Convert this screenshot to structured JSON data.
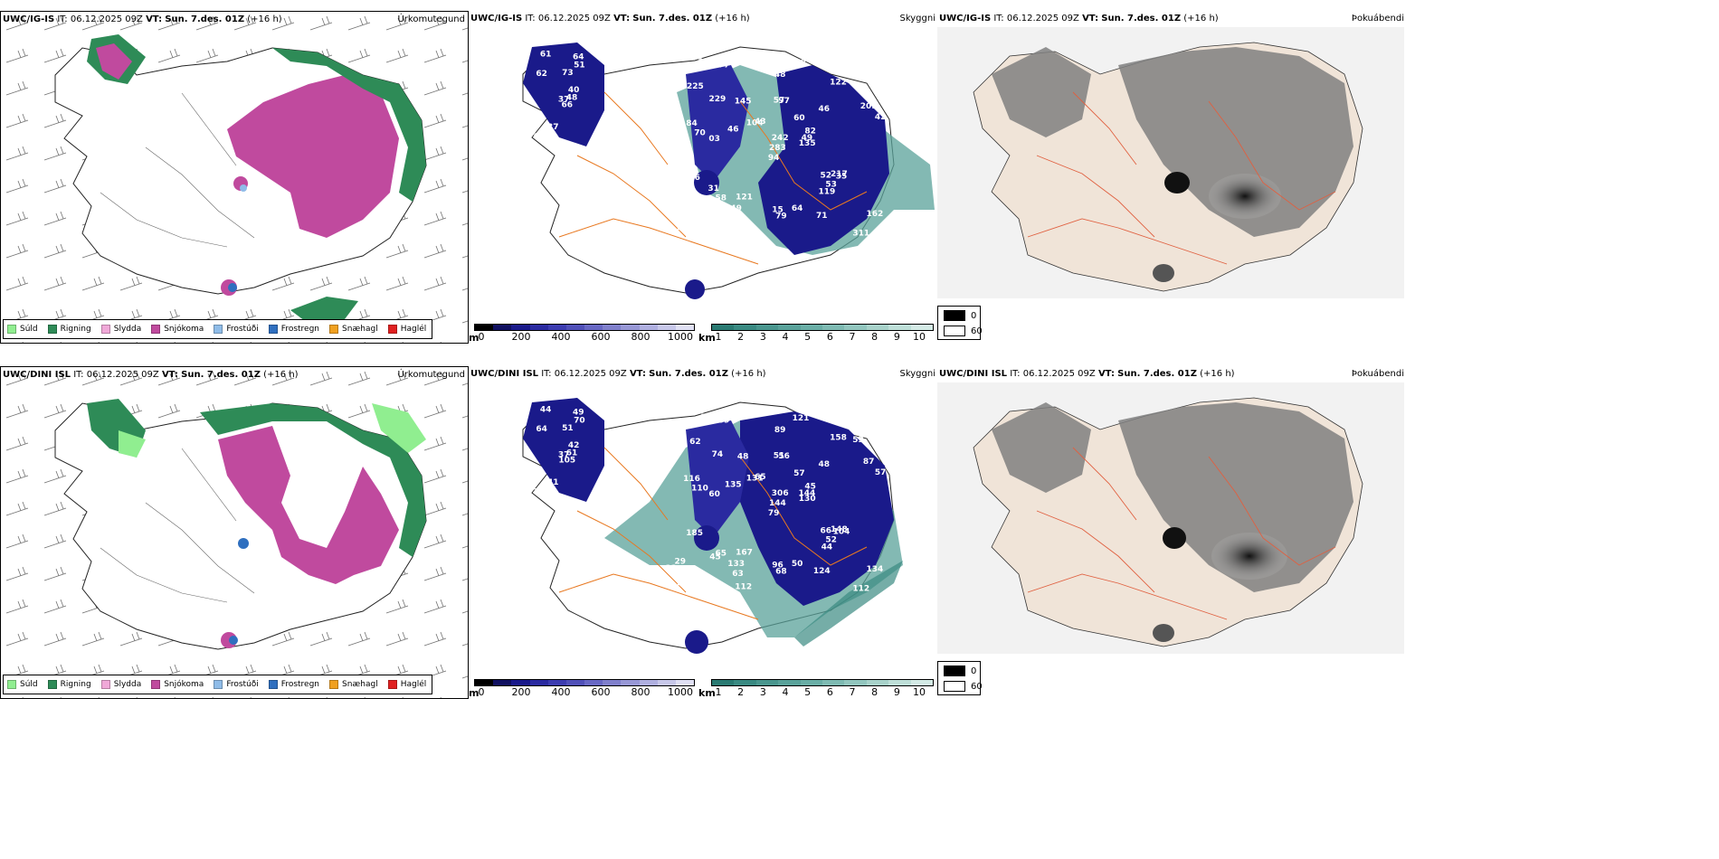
{
  "rows": [
    {
      "model": "UWC/IG-IS",
      "it_label": "IT:",
      "it_value": "06.12.2025 09Z",
      "vt_label": "VT:",
      "vt_value": "Sun. 7.des. 01Z",
      "lead": "(+16 h)",
      "cloud_numbers": [
        "66",
        "62",
        "37",
        "65",
        "40",
        "37",
        "64",
        "73",
        "51",
        "48",
        "61",
        "81",
        "03",
        "51",
        "94",
        "46",
        "61",
        "57",
        "60",
        "58",
        "43",
        "98",
        "108",
        "97",
        "82",
        "35",
        "229",
        "48",
        "70",
        "52",
        "42",
        "283",
        "15",
        "242",
        "145",
        "122",
        "121",
        "311",
        "162",
        "217",
        "83",
        "104",
        "46",
        "119",
        "112",
        "84",
        "49",
        "51",
        "79",
        "135",
        "95",
        "205",
        "225",
        "53",
        "71",
        "49",
        "77",
        "203",
        "64",
        "31",
        "56",
        "46",
        "28"
      ]
    },
    {
      "model": "UWC/DINI ISL",
      "it_label": "IT:",
      "it_value": "06.12.2025 09Z",
      "vt_label": "VT:",
      "vt_value": "Sun. 7.des. 01Z",
      "lead": "(+16 h)",
      "cloud_numbers": [
        "105",
        "64",
        "37",
        "37",
        "42",
        "41",
        "49",
        "51",
        "70",
        "61",
        "44",
        "62",
        "60",
        "57",
        "79",
        "48",
        "55",
        "51",
        "57",
        "65",
        "65",
        "10",
        "63",
        "56",
        "45",
        "104",
        "74",
        "89",
        "110",
        "66",
        "57",
        "144",
        "96",
        "306",
        "48",
        "158",
        "167",
        "112",
        "134",
        "148",
        "121",
        "131",
        "135",
        "44",
        "112",
        "116",
        "144",
        "176",
        "68",
        "130",
        "45",
        "87",
        "62",
        "52",
        "124",
        "133",
        "39",
        "70",
        "50",
        "53",
        "185",
        "48",
        "22",
        "29"
      ]
    }
  ],
  "panels": {
    "precip_type": {
      "name": "Úrkomutegund"
    },
    "cloud": {
      "name": "Skyggni"
    },
    "fog": {
      "name": "Þokuábendi"
    }
  },
  "precip_legend": [
    {
      "label": "Súld",
      "color": "#90ee90"
    },
    {
      "label": "Rigning",
      "color": "#2e8b57"
    },
    {
      "label": "Slydda",
      "color": "#f0a8d8"
    },
    {
      "label": "Snjókoma",
      "color": "#c04a9e"
    },
    {
      "label": "Frostúði",
      "color": "#8fbce8"
    },
    {
      "label": "Frostregn",
      "color": "#2f6fbf"
    },
    {
      "label": "Snæhagl",
      "color": "#f0a020"
    },
    {
      "label": "Haglél",
      "color": "#e02020"
    }
  ],
  "cloud_base_bar": {
    "unit": "m",
    "ticks": [
      "0",
      "200",
      "400",
      "600",
      "800",
      "1000"
    ],
    "colors": [
      "#000000",
      "#101060",
      "#1a1a8a",
      "#2a2aa0",
      "#3c3cb0",
      "#5050b8",
      "#6868c4",
      "#8080cc",
      "#9898d6",
      "#b0b0e0",
      "#c8c8ea",
      "#e0e0f4"
    ]
  },
  "visibility_bar": {
    "unit": "km",
    "ticks": [
      "1",
      "2",
      "3",
      "4",
      "5",
      "6",
      "7",
      "8",
      "9",
      "10"
    ],
    "colors": [
      "#2a7a72",
      "#3a8a82",
      "#4a968e",
      "#5aa29a",
      "#6aaea6",
      "#7ebab2",
      "#92c6be",
      "#a8d2ca",
      "#bedfd8",
      "#d4ebe6"
    ]
  },
  "fog_legend": [
    {
      "label": "0",
      "color": "#000000"
    },
    {
      "label": "60",
      "color": "#ffffff"
    }
  ]
}
